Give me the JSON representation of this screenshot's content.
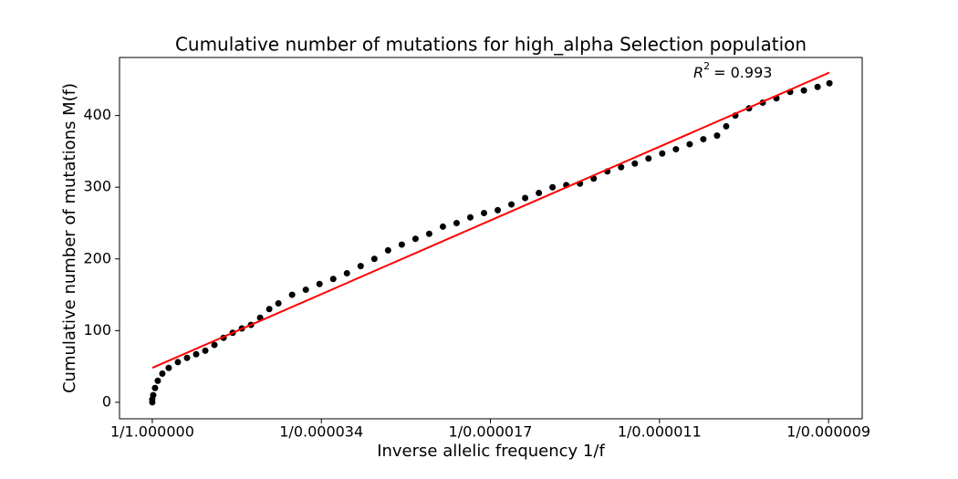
{
  "chart_data": {
    "type": "scatter",
    "title": "Cumulative number of mutations for high_alpha Selection population",
    "x_label": "Inverse allelic frequency 1/f",
    "y_label": "Cumulative number of mutations M(f)",
    "annotation": {
      "symbol": "R",
      "exponent": "2",
      "text": "=  0.993"
    },
    "xlim": [
      -5700,
      123500
    ],
    "ylim": [
      -23,
      481
    ],
    "xticks": [
      {
        "value": 1,
        "label": "1/1.000000"
      },
      {
        "value": 29412,
        "label": "1/0.000034"
      },
      {
        "value": 58824,
        "label": "1/0.000017"
      },
      {
        "value": 88235,
        "label": "1/0.000011"
      },
      {
        "value": 117647,
        "label": "1/0.000009"
      }
    ],
    "yticks": [
      0,
      100,
      200,
      300,
      400
    ],
    "series": [
      {
        "color": "#000000",
        "x": [
          1,
          1,
          160,
          478,
          955,
          1750,
          2863,
          4452,
          6042,
          7632,
          9222,
          10812,
          12401,
          13991,
          15581,
          17171,
          18761,
          20350,
          21940,
          24325,
          26710,
          29094,
          31479,
          33864,
          36248,
          38633,
          41018,
          43403,
          45787,
          48172,
          50557,
          52941,
          55326,
          57711,
          60096,
          62480,
          64865,
          67250,
          69634,
          72019,
          74404,
          76789,
          79173,
          81558,
          83943,
          86328,
          88712,
          91097,
          93482,
          95866,
          98251,
          99841,
          101431,
          103816,
          106200,
          108585,
          110970,
          113355,
          115740,
          117805
        ],
        "values": [
          0,
          4,
          10,
          20,
          30,
          40,
          48,
          56,
          62,
          67,
          72,
          80,
          90,
          97,
          103,
          108,
          118,
          130,
          138,
          150,
          157,
          165,
          172,
          180,
          190,
          200,
          212,
          220,
          228,
          235,
          245,
          250,
          258,
          264,
          268,
          276,
          285,
          292,
          300,
          303,
          305,
          312,
          322,
          328,
          333,
          340,
          347,
          353,
          360,
          367,
          372,
          385,
          400,
          410,
          418,
          424,
          433,
          435,
          440,
          445
        ]
      },
      {
        "type": "line",
        "color": "#ff0000",
        "x": [
          1,
          117805
        ],
        "values": [
          48,
          460
        ]
      }
    ]
  }
}
